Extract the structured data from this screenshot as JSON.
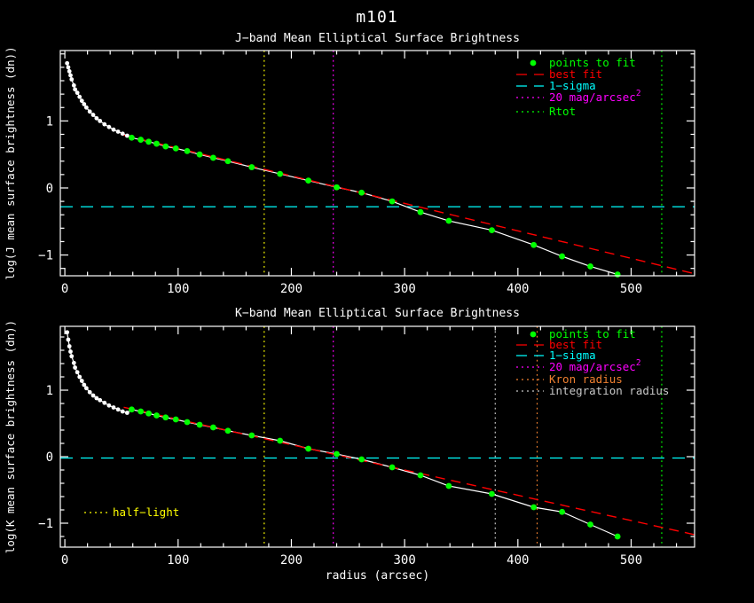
{
  "window": {
    "title": "m101",
    "background": "#000000",
    "foreground": "#ffffff"
  },
  "chart_data": [
    {
      "type": "line",
      "title": "J−band Mean Elliptical Surface Brightness",
      "xlabel": "",
      "ylabel": "log(J mean surface brightness (dn))",
      "xlim": [
        -4,
        556
      ],
      "ylim": [
        -1.31,
        2.05
      ],
      "xticks": [
        0,
        100,
        200,
        300,
        400,
        500
      ],
      "yticks": [
        -1,
        0,
        1
      ],
      "x_minor_step": 20,
      "y_minor_step": 0.2,
      "grid": "off",
      "legend_position": "top-right",
      "white_points": [
        [
          2,
          1.86
        ],
        [
          3,
          1.8
        ],
        [
          4,
          1.74
        ],
        [
          5,
          1.68
        ],
        [
          6,
          1.62
        ],
        [
          8,
          1.53
        ],
        [
          9,
          1.47
        ],
        [
          11,
          1.42
        ],
        [
          13,
          1.36
        ],
        [
          15,
          1.3
        ],
        [
          17,
          1.25
        ],
        [
          19,
          1.2
        ],
        [
          22,
          1.14
        ],
        [
          25,
          1.09
        ],
        [
          28,
          1.04
        ],
        [
          31,
          1.0
        ],
        [
          35,
          0.95
        ],
        [
          39,
          0.91
        ],
        [
          43,
          0.87
        ],
        [
          47,
          0.84
        ],
        [
          51,
          0.81
        ],
        [
          55,
          0.78
        ]
      ],
      "fit_points": [
        [
          59,
          0.75
        ],
        [
          67,
          0.72
        ],
        [
          74,
          0.69
        ],
        [
          81,
          0.66
        ],
        [
          89,
          0.62
        ],
        [
          98,
          0.59
        ],
        [
          108,
          0.55
        ],
        [
          119,
          0.5
        ],
        [
          131,
          0.45
        ],
        [
          144,
          0.4
        ],
        [
          165,
          0.31
        ],
        [
          190,
          0.21
        ],
        [
          215,
          0.11
        ],
        [
          240,
          0.01
        ],
        [
          262,
          -0.07
        ],
        [
          289,
          -0.2
        ],
        [
          314,
          -0.36
        ],
        [
          339,
          -0.49
        ],
        [
          377,
          -0.63
        ],
        [
          414,
          -0.85
        ],
        [
          439,
          -1.02
        ],
        [
          464,
          -1.17
        ],
        [
          488,
          -1.29
        ]
      ],
      "best_fit": {
        "label": "best fit",
        "color": "#ff0000",
        "slope": -0.0041,
        "intercept": 1.0,
        "x_start": 52,
        "x_end": 556
      },
      "one_sigma": {
        "label": "1−sigma",
        "color": "#00ffff",
        "y": -0.28
      },
      "points_to_fit": {
        "label": "points to fit",
        "color": "#00ff00"
      },
      "vlines": [
        {
          "label": "half−light",
          "x": 176,
          "color": "#ffff00"
        },
        {
          "label": "20 mag/arcsec",
          "sup": "2",
          "x": 237,
          "color": "#ff00ff"
        },
        {
          "label": "Rtot",
          "x": 527,
          "color": "#00ff00"
        }
      ],
      "legend": [
        {
          "label": "points to fit",
          "color": "#00ff00",
          "style": "marker"
        },
        {
          "label": "best fit",
          "color": "#ff0000",
          "style": "dash"
        },
        {
          "label": "1−sigma",
          "color": "#00ffff",
          "style": "dash"
        },
        {
          "label": "20 mag/arcsec",
          "sup": "2",
          "color": "#ff00ff",
          "style": "dot"
        },
        {
          "label": "Rtot",
          "color": "#00ff00",
          "style": "dot"
        }
      ]
    },
    {
      "type": "line",
      "title": "K−band Mean Elliptical Surface Brightness",
      "xlabel": "radius (arcsec)",
      "ylabel": "log(K mean surface brightness (dn))",
      "xlim": [
        -4,
        556
      ],
      "ylim": [
        -1.36,
        1.96
      ],
      "xticks": [
        0,
        100,
        200,
        300,
        400,
        500
      ],
      "yticks": [
        -1,
        0,
        1
      ],
      "x_minor_step": 20,
      "y_minor_step": 0.2,
      "grid": "off",
      "legend_position": "top-right",
      "white_points": [
        [
          2,
          1.87
        ],
        [
          3,
          1.76
        ],
        [
          4,
          1.66
        ],
        [
          5,
          1.58
        ],
        [
          6,
          1.51
        ],
        [
          8,
          1.41
        ],
        [
          9,
          1.34
        ],
        [
          11,
          1.27
        ],
        [
          13,
          1.2
        ],
        [
          15,
          1.14
        ],
        [
          17,
          1.08
        ],
        [
          19,
          1.03
        ],
        [
          22,
          0.97
        ],
        [
          25,
          0.92
        ],
        [
          28,
          0.88
        ],
        [
          31,
          0.85
        ],
        [
          35,
          0.81
        ],
        [
          39,
          0.77
        ],
        [
          43,
          0.74
        ],
        [
          47,
          0.71
        ],
        [
          51,
          0.68
        ],
        [
          55,
          0.66
        ]
      ],
      "fit_points": [
        [
          59,
          0.71
        ],
        [
          67,
          0.68
        ],
        [
          74,
          0.65
        ],
        [
          81,
          0.62
        ],
        [
          89,
          0.59
        ],
        [
          98,
          0.56
        ],
        [
          108,
          0.52
        ],
        [
          119,
          0.48
        ],
        [
          131,
          0.44
        ],
        [
          144,
          0.39
        ],
        [
          165,
          0.32
        ],
        [
          190,
          0.24
        ],
        [
          215,
          0.12
        ],
        [
          240,
          0.04
        ],
        [
          262,
          -0.04
        ],
        [
          289,
          -0.16
        ],
        [
          314,
          -0.28
        ],
        [
          339,
          -0.44
        ],
        [
          377,
          -0.56
        ],
        [
          414,
          -0.76
        ],
        [
          439,
          -0.83
        ],
        [
          464,
          -1.02
        ],
        [
          488,
          -1.2
        ]
      ],
      "best_fit": {
        "label": "best fit",
        "color": "#ff0000",
        "slope": -0.0038,
        "intercept": 0.94,
        "x_start": 52,
        "x_end": 556
      },
      "one_sigma": {
        "label": "1−sigma",
        "color": "#00ffff",
        "y": -0.02
      },
      "points_to_fit": {
        "label": "points to fit",
        "color": "#00ff00"
      },
      "vlines": [
        {
          "label": "half−light",
          "x": 176,
          "color": "#ffff00"
        },
        {
          "label": "20 mag/arcsec",
          "sup": "2",
          "x": 237,
          "color": "#ff00ff"
        },
        {
          "label": "integration radius",
          "x": 380,
          "color": "#c8c8c8"
        },
        {
          "label": "Kron radius",
          "x": 417,
          "color": "#f08030"
        },
        {
          "label": "Rtot",
          "x": 527,
          "color": "#00ff00"
        }
      ],
      "legend": [
        {
          "label": "points to fit",
          "color": "#00ff00",
          "style": "marker"
        },
        {
          "label": "best fit",
          "color": "#ff0000",
          "style": "dash"
        },
        {
          "label": "1−sigma",
          "color": "#00ffff",
          "style": "dash"
        },
        {
          "label": "20 mag/arcsec",
          "sup": "2",
          "color": "#ff00ff",
          "style": "dot"
        },
        {
          "label": "Kron radius",
          "color": "#f08030",
          "style": "dot"
        },
        {
          "label": "integration radius",
          "color": "#c8c8c8",
          "style": "dot"
        }
      ],
      "annotation": {
        "label": "half−light",
        "color": "#ffff00",
        "style": "dot"
      }
    }
  ]
}
